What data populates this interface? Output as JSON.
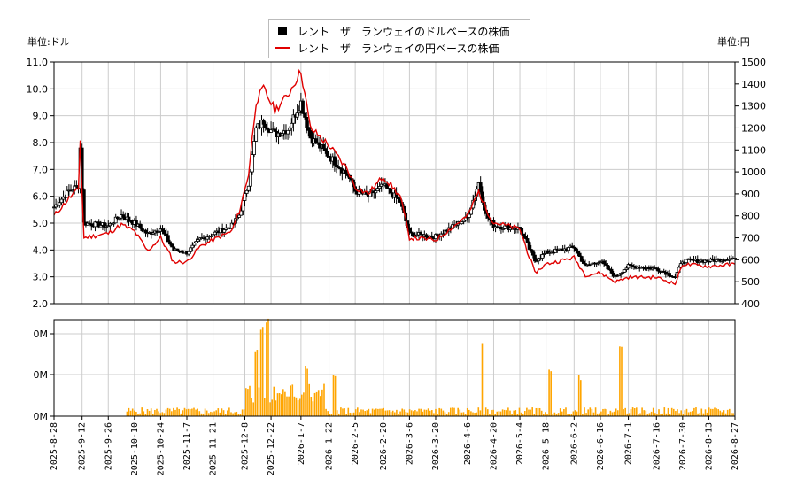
{
  "legend": {
    "usd_label": "レント　ザ　ランウェイのドルベースの株価",
    "jpy_label": "レント　ザ　ランウェイの円ベースの株価"
  },
  "units": {
    "left": "単位:ドル",
    "right": "単位:円"
  },
  "colors": {
    "candle": "#000000",
    "yen_line": "#e00000",
    "volume": "#ffa500",
    "grid": "#cccccc"
  },
  "chart_data": {
    "type": "candlestick+line+bar",
    "title": "",
    "x_tick_labels": [
      "2025-8-28",
      "2025-9-12",
      "2025-9-26",
      "2025-10-10",
      "2025-10-24",
      "2025-11-7",
      "2025-11-21",
      "2025-12-8",
      "2025-12-22",
      "2026-1-7",
      "2026-1-22",
      "2026-2-5",
      "2026-2-20",
      "2026-3-6",
      "2026-3-20",
      "2026-4-6",
      "2026-4-20",
      "2026-5-4",
      "2026-5-18",
      "2026-6-2",
      "2026-6-16",
      "2026-7-1",
      "2026-7-16",
      "2026-7-30",
      "2026-8-13",
      "2026-8-27"
    ],
    "left_axis": {
      "label": "単位:ドル",
      "ylim": [
        2.0,
        11.0
      ],
      "ticks": [
        "2.0",
        "3.0",
        "4.0",
        "5.0",
        "6.0",
        "7.0",
        "8.0",
        "9.0",
        "10.0",
        "11.0"
      ]
    },
    "right_axis": {
      "label": "単位:円",
      "ylim": [
        400,
        1500
      ],
      "ticks": [
        "400",
        "500",
        "600",
        "700",
        "800",
        "900",
        "1000",
        "1100",
        "1200",
        "1300",
        "1400",
        "1500"
      ]
    },
    "volume_axis": {
      "ticks": [
        "0M",
        "0M",
        "0M"
      ]
    },
    "usd_close_keypoints": [
      {
        "x": "2025-8-28",
        "y": 5.6
      },
      {
        "x": "2025-9-5",
        "y": 6.2
      },
      {
        "x": "2025-9-10",
        "y": 6.4
      },
      {
        "x": "2025-9-11",
        "y": 7.8
      },
      {
        "x": "2025-9-12",
        "y": 6.3
      },
      {
        "x": "2025-9-13",
        "y": 5.0
      },
      {
        "x": "2025-9-26",
        "y": 4.9
      },
      {
        "x": "2025-10-3",
        "y": 5.3
      },
      {
        "x": "2025-10-10",
        "y": 5.0
      },
      {
        "x": "2025-10-17",
        "y": 4.6
      },
      {
        "x": "2025-10-24",
        "y": 4.8
      },
      {
        "x": "2025-10-31",
        "y": 4.0
      },
      {
        "x": "2025-11-7",
        "y": 3.9
      },
      {
        "x": "2025-11-14",
        "y": 4.4
      },
      {
        "x": "2025-11-21",
        "y": 4.6
      },
      {
        "x": "2025-12-1",
        "y": 4.9
      },
      {
        "x": "2025-12-5",
        "y": 5.3
      },
      {
        "x": "2025-12-10",
        "y": 6.5
      },
      {
        "x": "2025-12-14",
        "y": 8.5
      },
      {
        "x": "2025-12-18",
        "y": 8.8
      },
      {
        "x": "2025-12-24",
        "y": 8.3
      },
      {
        "x": "2025-12-31",
        "y": 8.5
      },
      {
        "x": "2026-1-7",
        "y": 9.5
      },
      {
        "x": "2026-1-12",
        "y": 8.2
      },
      {
        "x": "2026-1-22",
        "y": 7.5
      },
      {
        "x": "2026-2-1",
        "y": 6.8
      },
      {
        "x": "2026-2-5",
        "y": 6.2
      },
      {
        "x": "2026-2-12",
        "y": 6.0
      },
      {
        "x": "2026-2-20",
        "y": 6.4
      },
      {
        "x": "2026-3-1",
        "y": 5.8
      },
      {
        "x": "2026-3-6",
        "y": 4.6
      },
      {
        "x": "2026-3-20",
        "y": 4.5
      },
      {
        "x": "2026-4-6",
        "y": 5.2
      },
      {
        "x": "2026-4-12",
        "y": 6.5
      },
      {
        "x": "2026-4-16",
        "y": 5.3
      },
      {
        "x": "2026-4-20",
        "y": 4.9
      },
      {
        "x": "2026-5-4",
        "y": 4.8
      },
      {
        "x": "2026-5-12",
        "y": 3.6
      },
      {
        "x": "2026-5-18",
        "y": 3.9
      },
      {
        "x": "2026-6-2",
        "y": 4.1
      },
      {
        "x": "2026-6-8",
        "y": 3.4
      },
      {
        "x": "2026-6-16",
        "y": 3.6
      },
      {
        "x": "2026-6-24",
        "y": 3.0
      },
      {
        "x": "2026-7-1",
        "y": 3.4
      },
      {
        "x": "2026-7-16",
        "y": 3.3
      },
      {
        "x": "2026-7-26",
        "y": 3.0
      },
      {
        "x": "2026-7-30",
        "y": 3.6
      },
      {
        "x": "2026-8-13",
        "y": 3.6
      },
      {
        "x": "2026-8-27",
        "y": 3.7
      }
    ],
    "jpy_close_keypoints": [
      {
        "x": "2025-8-28",
        "y": 800
      },
      {
        "x": "2025-9-5",
        "y": 880
      },
      {
        "x": "2025-9-10",
        "y": 920
      },
      {
        "x": "2025-9-11",
        "y": 1150
      },
      {
        "x": "2025-9-12",
        "y": 900
      },
      {
        "x": "2025-9-13",
        "y": 700
      },
      {
        "x": "2025-9-26",
        "y": 720
      },
      {
        "x": "2025-10-3",
        "y": 760
      },
      {
        "x": "2025-10-10",
        "y": 730
      },
      {
        "x": "2025-10-17",
        "y": 640
      },
      {
        "x": "2025-10-24",
        "y": 700
      },
      {
        "x": "2025-10-31",
        "y": 590
      },
      {
        "x": "2025-11-7",
        "y": 590
      },
      {
        "x": "2025-11-14",
        "y": 660
      },
      {
        "x": "2025-11-21",
        "y": 690
      },
      {
        "x": "2025-12-1",
        "y": 730
      },
      {
        "x": "2025-12-5",
        "y": 820
      },
      {
        "x": "2025-12-10",
        "y": 990
      },
      {
        "x": "2025-12-14",
        "y": 1320
      },
      {
        "x": "2025-12-18",
        "y": 1380
      },
      {
        "x": "2025-12-24",
        "y": 1280
      },
      {
        "x": "2025-12-31",
        "y": 1350
      },
      {
        "x": "2026-1-7",
        "y": 1460
      },
      {
        "x": "2026-1-12",
        "y": 1200
      },
      {
        "x": "2026-1-22",
        "y": 1120
      },
      {
        "x": "2026-2-1",
        "y": 1010
      },
      {
        "x": "2026-2-5",
        "y": 930
      },
      {
        "x": "2026-2-12",
        "y": 900
      },
      {
        "x": "2026-2-20",
        "y": 980
      },
      {
        "x": "2026-3-1",
        "y": 890
      },
      {
        "x": "2026-3-6",
        "y": 700
      },
      {
        "x": "2026-3-20",
        "y": 690
      },
      {
        "x": "2026-4-6",
        "y": 800
      },
      {
        "x": "2026-4-12",
        "y": 910
      },
      {
        "x": "2026-4-16",
        "y": 830
      },
      {
        "x": "2026-4-20",
        "y": 770
      },
      {
        "x": "2026-5-4",
        "y": 740
      },
      {
        "x": "2026-5-12",
        "y": 540
      },
      {
        "x": "2026-5-18",
        "y": 580
      },
      {
        "x": "2026-6-2",
        "y": 610
      },
      {
        "x": "2026-6-8",
        "y": 530
      },
      {
        "x": "2026-6-16",
        "y": 540
      },
      {
        "x": "2026-6-24",
        "y": 500
      },
      {
        "x": "2026-7-1",
        "y": 520
      },
      {
        "x": "2026-7-16",
        "y": 520
      },
      {
        "x": "2026-7-26",
        "y": 490
      },
      {
        "x": "2026-7-30",
        "y": 580
      },
      {
        "x": "2026-8-13",
        "y": 570
      },
      {
        "x": "2026-8-27",
        "y": 580
      }
    ],
    "volume_spike_dates": [
      "2025-12-14",
      "2025-12-17",
      "2025-12-20",
      "2026-1-10",
      "2026-1-25",
      "2026-4-14",
      "2026-5-20",
      "2026-6-5",
      "2026-6-27"
    ],
    "grid": true,
    "legend_position": "top-center"
  }
}
